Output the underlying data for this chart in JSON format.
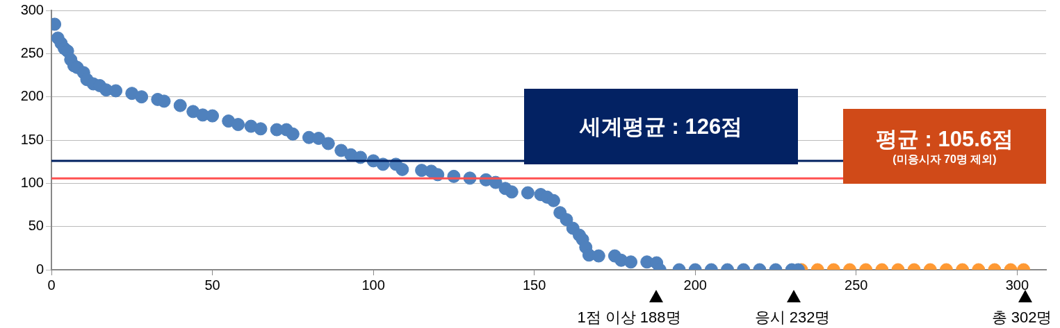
{
  "chart_data": {
    "type": "scatter",
    "marker": "circle",
    "grid": "y",
    "legend": false,
    "xlim": [
      0,
      309
    ],
    "xticks": [
      0,
      50,
      100,
      150,
      200,
      250,
      300
    ],
    "ylim": [
      0,
      300
    ],
    "yticks": [
      0,
      50,
      100,
      150,
      200,
      250,
      300
    ],
    "series": [
      {
        "color": "#4f81bd",
        "x": [
          1,
          2,
          3,
          4,
          5,
          6,
          7,
          8,
          10,
          11,
          13,
          15,
          17,
          20,
          25,
          28,
          33,
          35,
          40,
          44,
          47,
          50,
          55,
          58,
          62,
          65,
          70,
          73,
          75,
          80,
          83,
          86,
          90,
          93,
          96,
          100,
          103,
          107,
          109,
          115,
          118,
          120,
          125,
          130,
          135,
          138,
          141,
          143,
          148,
          152,
          154,
          156,
          158,
          160,
          162,
          164,
          165,
          166,
          167,
          170,
          175,
          177,
          180,
          185,
          188,
          189,
          195,
          200,
          205,
          210,
          215,
          220,
          225,
          230,
          232
        ],
        "values": [
          284,
          268,
          262,
          256,
          253,
          243,
          236,
          234,
          228,
          220,
          215,
          213,
          208,
          207,
          204,
          200,
          197,
          195,
          190,
          183,
          179,
          178,
          172,
          168,
          166,
          163,
          162,
          162,
          157,
          153,
          152,
          146,
          138,
          133,
          130,
          126,
          122,
          122,
          116,
          115,
          114,
          110,
          108,
          106,
          104,
          101,
          94,
          90,
          89,
          87,
          84,
          80,
          66,
          58,
          48,
          40,
          35,
          26,
          17,
          16,
          16,
          11,
          9,
          9,
          8,
          0,
          0,
          0,
          0,
          0,
          0,
          0,
          0,
          0,
          0
        ]
      },
      {
        "color": "#ff9933",
        "x": [
          233,
          238,
          243,
          248,
          253,
          258,
          263,
          268,
          273,
          278,
          283,
          288,
          293,
          298,
          302
        ],
        "values": [
          0,
          0,
          0,
          0,
          0,
          0,
          0,
          0,
          0,
          0,
          0,
          0,
          0,
          0,
          0
        ]
      }
    ],
    "ref_lines": [
      {
        "axis": "y",
        "value": 126,
        "label": "세계평균 : 126점",
        "color": "#002060"
      },
      {
        "axis": "y",
        "value": 105.6,
        "label": "평균 : 105.6점",
        "color": "#ff5050"
      }
    ],
    "annotations": [
      "(미응시자 70명 제외)",
      "1점 이상 188명",
      "응시 232명",
      "총 302명"
    ]
  }
}
